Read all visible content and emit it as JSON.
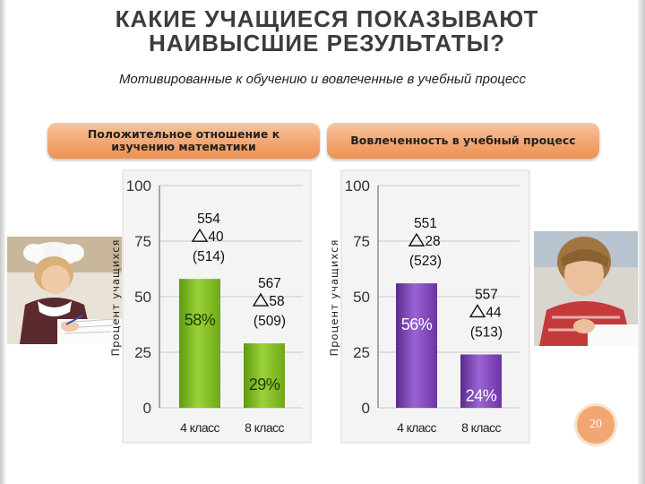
{
  "slide": {
    "title": "КАКИЕ УЧАЩИЕСЯ ПОКАЗЫВАЮТ НАИВЫСШИЕ РЕЗУЛЬТАТЫ?",
    "subtitle": "Мотивированные к обучению и вовлеченные в учебный процесс",
    "page_number": "20"
  },
  "colors": {
    "pill": "#f2a672",
    "green_bar": "#7dbb1c",
    "purple_bar": "#7d3fb6",
    "chart_bg": "#f4f4f4"
  },
  "chart_data": [
    {
      "type": "bar",
      "header": "Положительное отношение к изучению математики",
      "ylabel": "Процент учащихся",
      "categories": [
        "4 класс",
        "8 класс"
      ],
      "values": [
        58,
        29
      ],
      "value_labels": [
        "58%",
        "29%"
      ],
      "annotations": [
        {
          "score": "554",
          "delta": "40",
          "ref": "(514)"
        },
        {
          "score": "567",
          "delta": "58",
          "ref": "(509)"
        }
      ],
      "ylim": [
        0,
        100
      ],
      "yticks": [
        "0",
        "25",
        "50",
        "75",
        "100"
      ],
      "grid": true,
      "color": "#7dbb1c"
    },
    {
      "type": "bar",
      "header": "Вовлеченность в учебный процесс",
      "ylabel": "Процент учащихся",
      "categories": [
        "4 класс",
        "8 класс"
      ],
      "values": [
        56,
        24
      ],
      "value_labels": [
        "56%",
        "24%"
      ],
      "annotations": [
        {
          "score": "551",
          "delta": "28",
          "ref": "(523)"
        },
        {
          "score": "557",
          "delta": "44",
          "ref": "(513)"
        }
      ],
      "ylim": [
        0,
        100
      ],
      "yticks": [
        "0",
        "25",
        "50",
        "75",
        "100"
      ],
      "grid": true,
      "color": "#7d3fb6"
    }
  ]
}
